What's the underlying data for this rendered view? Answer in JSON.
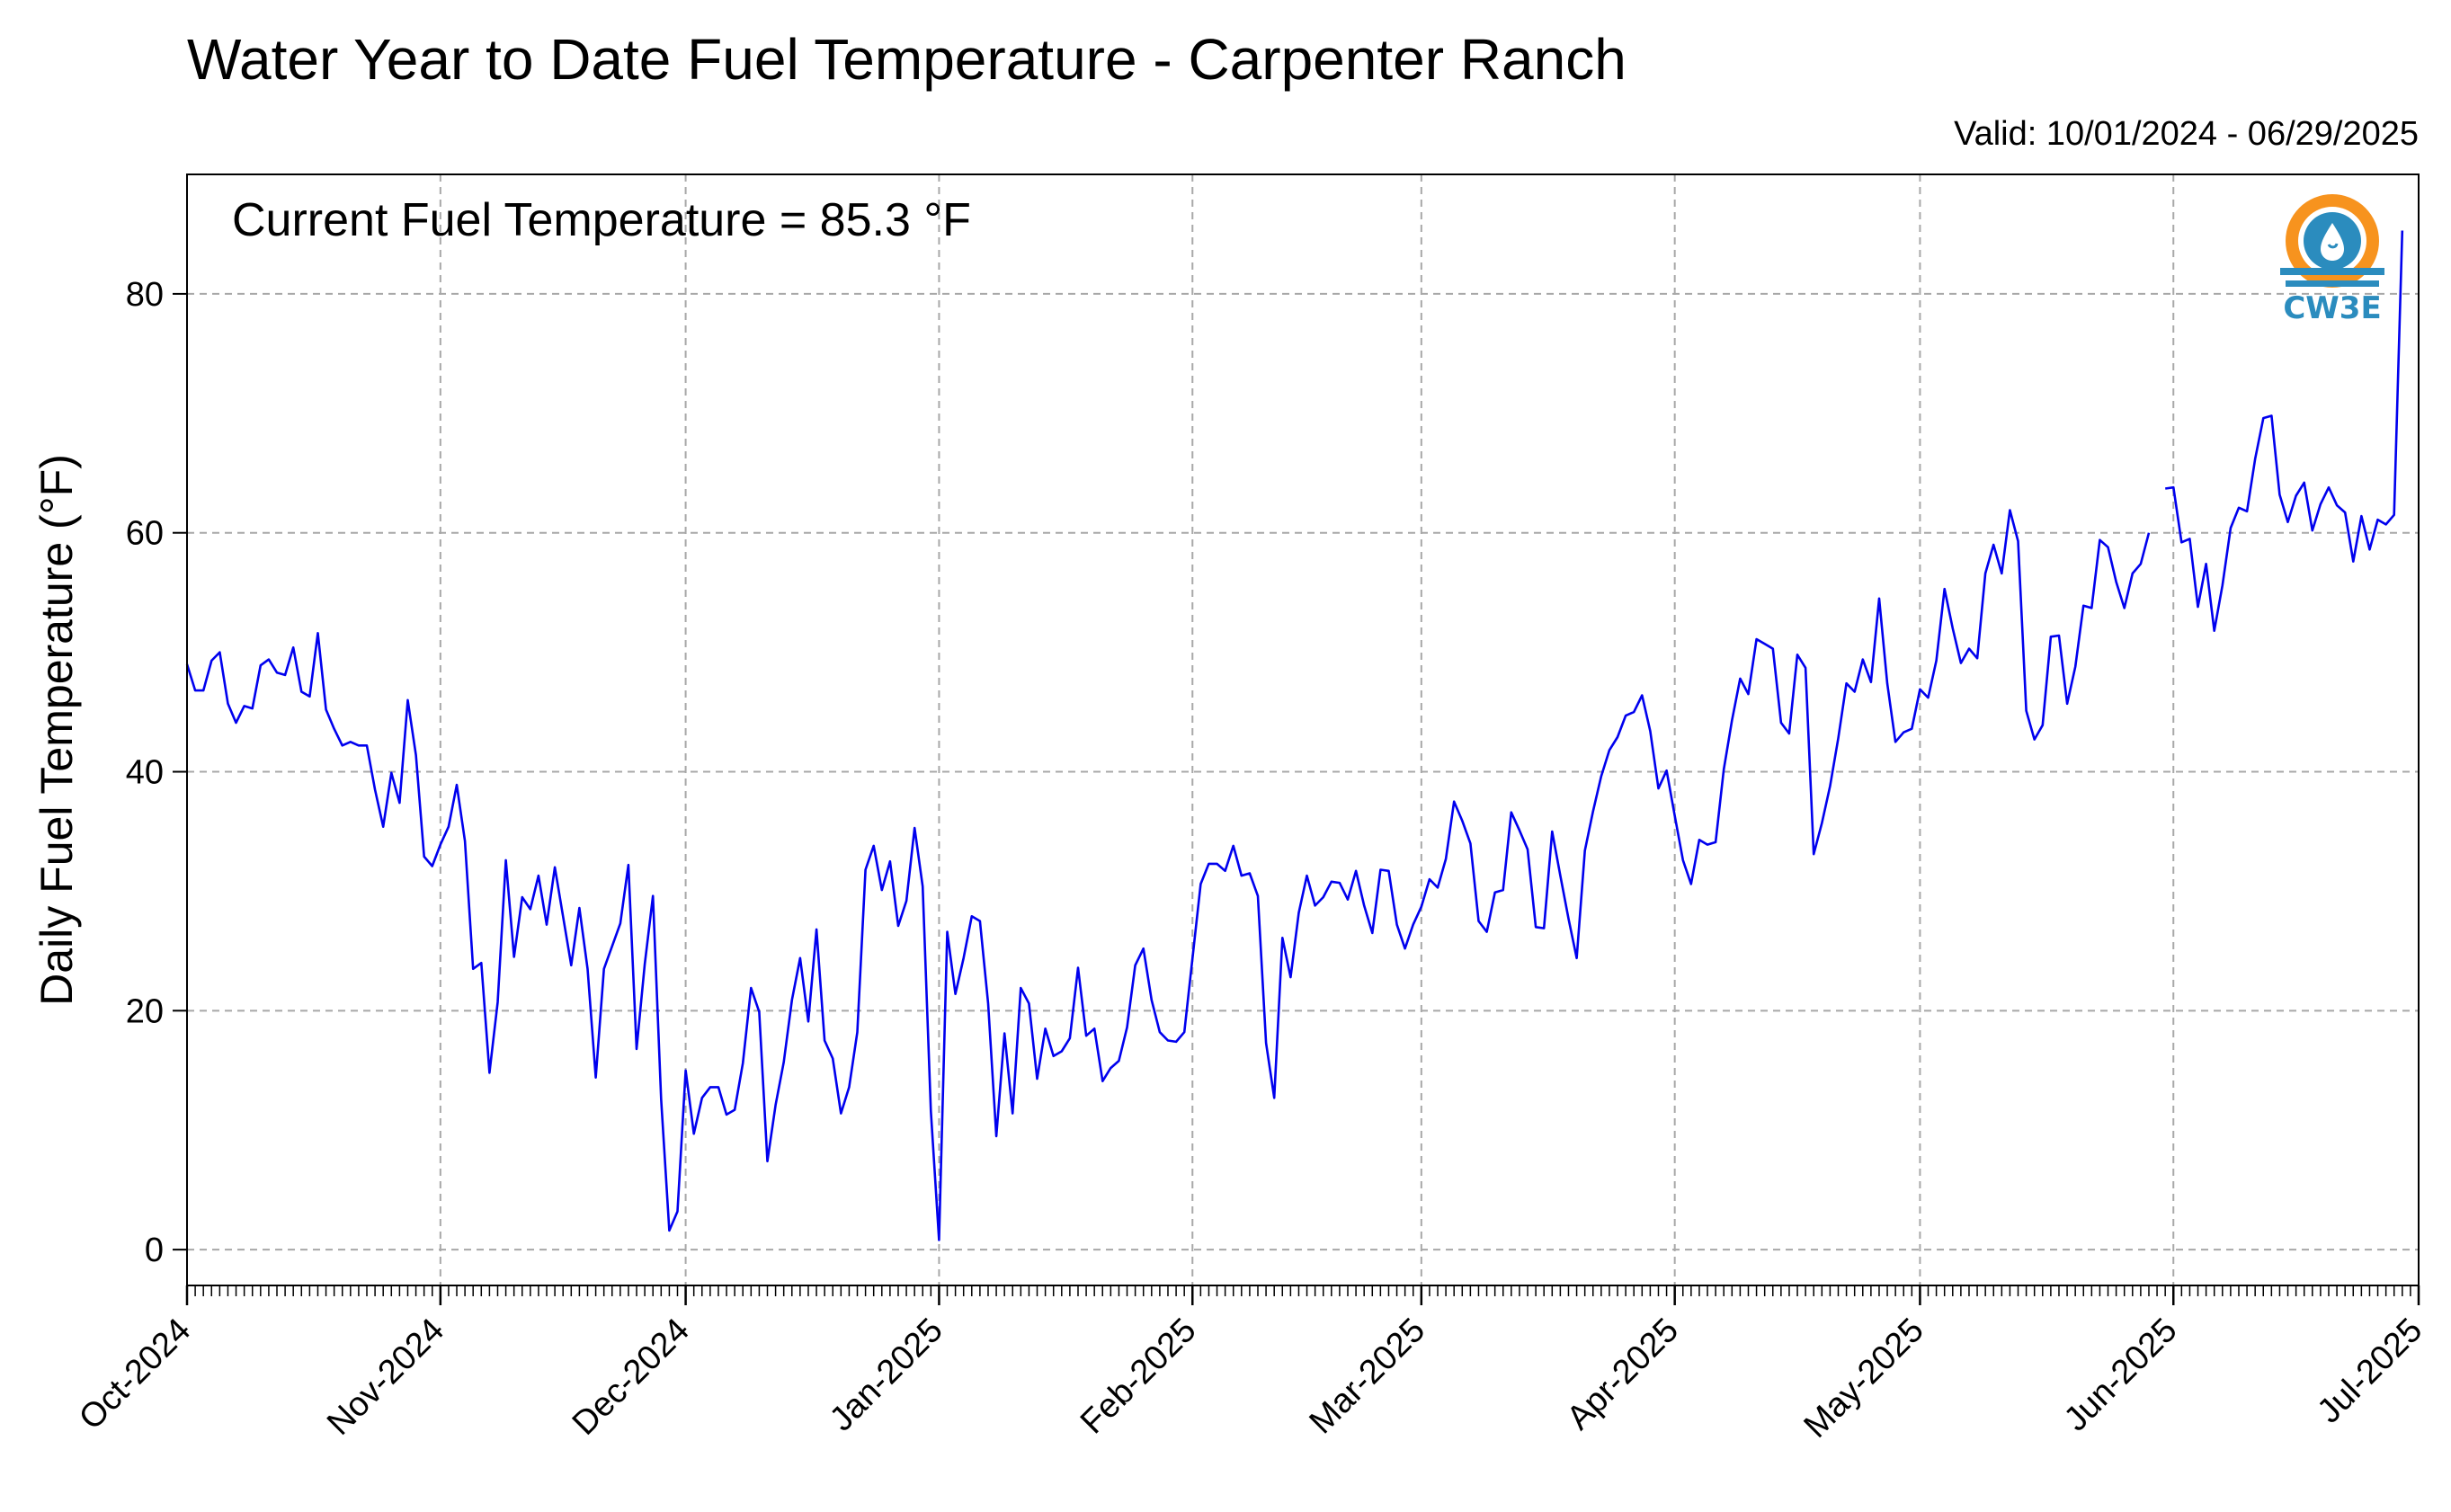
{
  "chart_data": {
    "type": "line",
    "title": "Water Year to Date Fuel Temperature - Carpenter Ranch",
    "subtitle": "Valid: 10/01/2024 - 06/29/2025",
    "annotation": "Current Fuel Temperature = 85.3 °F",
    "ylabel": "Daily Fuel Temperature (°F)",
    "xlabel": "",
    "xlim": [
      "2024-10-01",
      "2025-07-01"
    ],
    "ylim": [
      -3,
      90
    ],
    "yticks": [
      0,
      20,
      40,
      60,
      80
    ],
    "xtick_labels": [
      "Oct-2024",
      "Nov-2024",
      "Dec-2024",
      "Jan-2025",
      "Feb-2025",
      "Mar-2025",
      "Apr-2025",
      "May-2025",
      "Jun-2025",
      "Jul-2025"
    ],
    "xtick_dates": [
      "2024-10-01",
      "2024-11-01",
      "2024-12-01",
      "2025-01-01",
      "2025-02-01",
      "2025-03-01",
      "2025-04-01",
      "2025-05-01",
      "2025-06-01",
      "2025-07-01"
    ],
    "grid": true,
    "series": [
      {
        "color": "#0000ee",
        "segments": [
          {
            "start": "2024-10-01",
            "values": [
              49.0,
              46.8,
              46.8,
              49.3,
              50.0,
              45.7,
              44.1,
              45.5,
              45.3,
              48.9,
              49.4,
              48.3,
              48.1,
              50.4,
              46.7,
              46.3,
              51.6,
              45.2,
              43.6,
              42.2,
              42.5,
              42.2,
              42.2,
              38.5,
              35.4,
              39.9,
              37.4,
              46.0,
              41.4,
              32.9,
              32.1,
              33.9,
              35.4,
              38.9,
              34.2,
              23.5,
              24.0,
              14.8,
              20.7,
              32.6,
              24.5,
              29.5,
              28.5,
              31.3,
              27.2,
              32.0,
              27.9,
              23.8,
              28.6,
              23.5,
              14.4,
              23.5,
              25.4,
              27.3,
              32.2,
              16.8,
              23.9,
              29.6,
              12.6,
              1.6,
              3.2,
              15.0,
              9.7,
              12.7,
              13.6,
              13.6,
              11.3,
              11.7,
              15.6,
              21.9,
              19.9,
              7.4,
              12.1,
              15.7,
              20.9,
              24.4,
              19.1,
              26.8,
              17.5,
              16.0,
              11.4,
              13.6,
              18.2,
              31.8,
              33.8,
              30.1,
              32.5,
              27.1,
              29.2,
              35.3,
              30.4,
              11.6,
              0.8,
              26.6,
              21.4,
              24.4,
              27.9,
              27.5,
              20.6,
              9.5,
              18.1,
              11.4,
              21.9,
              20.6,
              14.3,
              18.5,
              16.2,
              16.6,
              17.7,
              23.6,
              17.9,
              18.5,
              14.1,
              15.2,
              15.8,
              18.6,
              23.8,
              25.2,
              20.9,
              18.2,
              17.5,
              17.4,
              18.2,
              24.4,
              30.6,
              32.3,
              32.3,
              31.7,
              33.8,
              31.3,
              31.5,
              29.6,
              17.3,
              12.7,
              26.1,
              22.8,
              28.2,
              31.3,
              28.8,
              29.5,
              30.8,
              30.7,
              29.3,
              31.7,
              28.8,
              26.5,
              31.8,
              31.7,
              27.2,
              25.2,
              27.2,
              28.7,
              31.0,
              30.3,
              32.7,
              37.5,
              35.9,
              34.0,
              27.5,
              26.6,
              29.9,
              30.1,
              36.6,
              35.1,
              33.5,
              27.0,
              26.9,
              35.0,
              31.3,
              27.7,
              24.4,
              33.4,
              36.7,
              39.6,
              41.8,
              42.9,
              44.7,
              45.0,
              46.4,
              43.4,
              38.6,
              40.1,
              36.3,
              32.6,
              30.6,
              34.3,
              33.9,
              34.1,
              40.2,
              44.3,
              47.8,
              46.5,
              51.1,
              50.7,
              50.3,
              44.1,
              43.2,
              49.8,
              48.7,
              33.1,
              35.7,
              38.8,
              42.8,
              47.4,
              46.7,
              49.4,
              47.5,
              54.5,
              47.4,
              42.5,
              43.3,
              43.6,
              46.9,
              46.2,
              49.3,
              55.3,
              52.0,
              49.1,
              50.3,
              49.5,
              56.6,
              59.0,
              56.6,
              61.9,
              59.3,
              45.1,
              42.7,
              43.9,
              51.3,
              51.4,
              45.7,
              48.8,
              53.9,
              53.7,
              59.4,
              58.8,
              55.9,
              53.7,
              56.6,
              57.4,
              60.0
            ]
          },
          {
            "start": "2025-05-31",
            "values": [
              63.7,
              63.8,
              59.2,
              59.5,
              53.8,
              57.4,
              51.8,
              55.6,
              60.4,
              62.1,
              61.8,
              66.2,
              69.6,
              69.8,
              63.2,
              60.9,
              63.1,
              64.2,
              60.2,
              62.4,
              63.8,
              62.3,
              61.7,
              57.6,
              61.4,
              58.6,
              61.1,
              60.7,
              61.5,
              85.3
            ]
          }
        ]
      }
    ]
  },
  "logo": {
    "text": "CW3E",
    "icon": "cw3e-water-drop-logo",
    "colors": {
      "sun": "#f7931e",
      "waves": "#2b8cbe"
    }
  }
}
